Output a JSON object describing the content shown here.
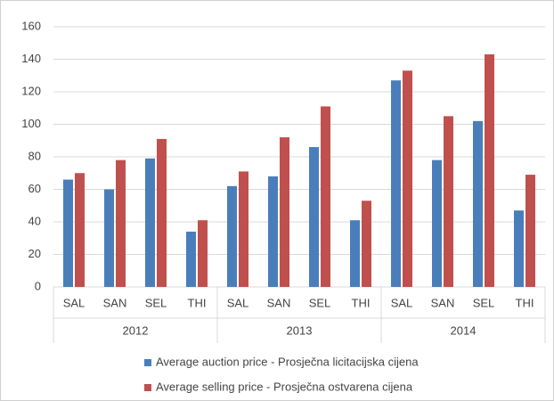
{
  "chart_data": {
    "type": "bar",
    "categories": [
      "SAL",
      "SAN",
      "SEL",
      "THI",
      "SAL",
      "SAN",
      "SEL",
      "THI",
      "SAL",
      "SAN",
      "SEL",
      "THI"
    ],
    "category_groups": [
      "2012",
      "2013",
      "2014"
    ],
    "series": [
      {
        "name": "Average auction price - Prosječna licitacijska cijena",
        "color": "#4a7ebb",
        "values": [
          66,
          60,
          79,
          34,
          62,
          68,
          86,
          41,
          127,
          78,
          102,
          47
        ]
      },
      {
        "name": "Average selling price - Prosječna ostvarena cijena",
        "color": "#c0504d",
        "values": [
          70,
          78,
          91,
          41,
          71,
          92,
          111,
          53,
          133,
          105,
          143,
          69
        ]
      }
    ],
    "ylim": [
      0,
      160
    ],
    "yticks": [
      0,
      20,
      40,
      60,
      80,
      100,
      120,
      140,
      160
    ],
    "grid": true
  }
}
